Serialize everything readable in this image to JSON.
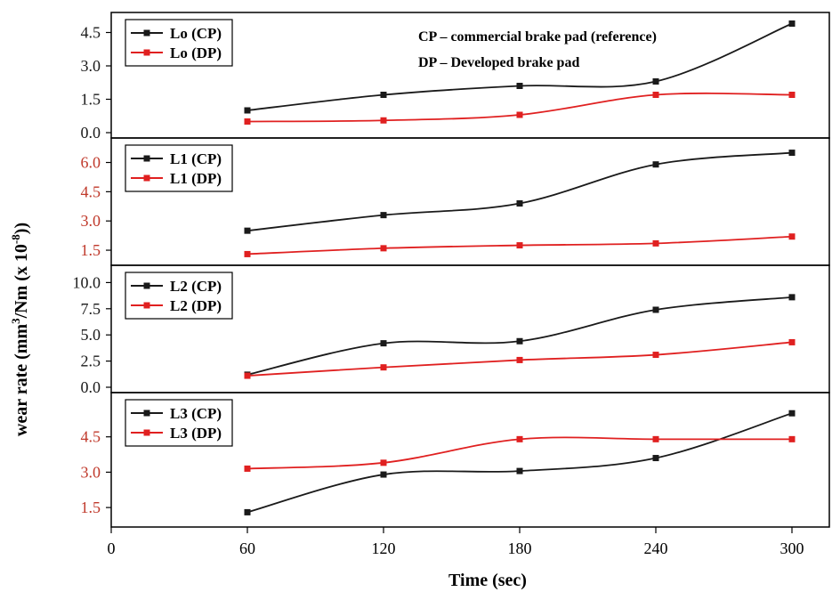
{
  "chart_data": {
    "type": "line",
    "xlabel": "Time (sec)",
    "ylabel": "wear rate (mm³/Nm (x 10⁻⁸))",
    "ylabel_parts": {
      "a": "wear rate (mm",
      "b": "3",
      "c": "/Nm (x 10",
      "d": "-8",
      "e": "))"
    },
    "x_ticks": [
      "0",
      "60",
      "120",
      "180",
      "240",
      "300"
    ],
    "xlim": [
      0,
      300
    ],
    "notes": [
      "CP – commercial brake pad (reference)",
      "DP – Developed brake pad"
    ],
    "colors": {
      "cp": "#1a1a1a",
      "dp": "#e02020",
      "red_tick": "#c0392b"
    },
    "panels": [
      {
        "id": "Lo",
        "ylim": [
          0,
          5
        ],
        "y_ticks": [
          {
            "v": 0,
            "t": "0.0"
          },
          {
            "v": 1.5,
            "t": "1.5"
          },
          {
            "v": 3.0,
            "t": "3.0"
          },
          {
            "v": 4.5,
            "t": "4.5"
          }
        ],
        "tick_color": "cp",
        "series": [
          {
            "name": "Lo (CP)",
            "color": "cp",
            "x": [
              60,
              120,
              180,
              240,
              300
            ],
            "y": [
              1.0,
              1.7,
              2.1,
              2.3,
              4.9
            ]
          },
          {
            "name": "Lo (DP)",
            "color": "dp",
            "x": [
              60,
              120,
              180,
              240,
              300
            ],
            "y": [
              0.5,
              0.55,
              0.8,
              1.7,
              1.7
            ]
          }
        ]
      },
      {
        "id": "L1",
        "ylim": [
          1.0,
          6.8
        ],
        "y_ticks": [
          {
            "v": 1.5,
            "t": "1.5"
          },
          {
            "v": 3.0,
            "t": "3.0"
          },
          {
            "v": 4.5,
            "t": "4.5"
          },
          {
            "v": 6.0,
            "t": "6.0"
          }
        ],
        "tick_color": "red_tick",
        "series": [
          {
            "name": "L1 (CP)",
            "color": "cp",
            "x": [
              60,
              120,
              180,
              240,
              300
            ],
            "y": [
              2.5,
              3.3,
              3.9,
              5.9,
              6.5
            ]
          },
          {
            "name": "L1 (DP)",
            "color": "dp",
            "x": [
              60,
              120,
              180,
              240,
              300
            ],
            "y": [
              1.3,
              1.6,
              1.75,
              1.85,
              2.2
            ]
          }
        ]
      },
      {
        "id": "L2",
        "ylim": [
          0,
          10.8
        ],
        "y_ticks": [
          {
            "v": 0,
            "t": "0.0"
          },
          {
            "v": 2.5,
            "t": "2.5"
          },
          {
            "v": 5.0,
            "t": "5.0"
          },
          {
            "v": 7.5,
            "t": "7.5"
          },
          {
            "v": 10.0,
            "t": "10.0"
          }
        ],
        "tick_color": "cp",
        "series": [
          {
            "name": "L2 (CP)",
            "color": "cp",
            "x": [
              60,
              120,
              180,
              240,
              300
            ],
            "y": [
              1.2,
              4.2,
              4.4,
              7.4,
              8.6
            ]
          },
          {
            "name": "L2 (DP)",
            "color": "dp",
            "x": [
              60,
              120,
              180,
              240,
              300
            ],
            "y": [
              1.1,
              1.9,
              2.6,
              3.1,
              4.3
            ]
          }
        ]
      },
      {
        "id": "L3",
        "ylim": [
          0.9,
          6.0
        ],
        "y_ticks": [
          {
            "v": 1.5,
            "t": "1.5"
          },
          {
            "v": 3.0,
            "t": "3.0"
          },
          {
            "v": 4.5,
            "t": "4.5"
          }
        ],
        "tick_color": "red_tick",
        "series": [
          {
            "name": "L3 (CP)",
            "color": "cp",
            "x": [
              60,
              120,
              180,
              240,
              300
            ],
            "y": [
              1.3,
              2.9,
              3.05,
              3.6,
              5.5
            ]
          },
          {
            "name": "L3 (DP)",
            "color": "dp",
            "x": [
              60,
              120,
              180,
              240,
              300
            ],
            "y": [
              3.15,
              3.4,
              4.4,
              4.4,
              4.4
            ]
          }
        ]
      }
    ]
  }
}
